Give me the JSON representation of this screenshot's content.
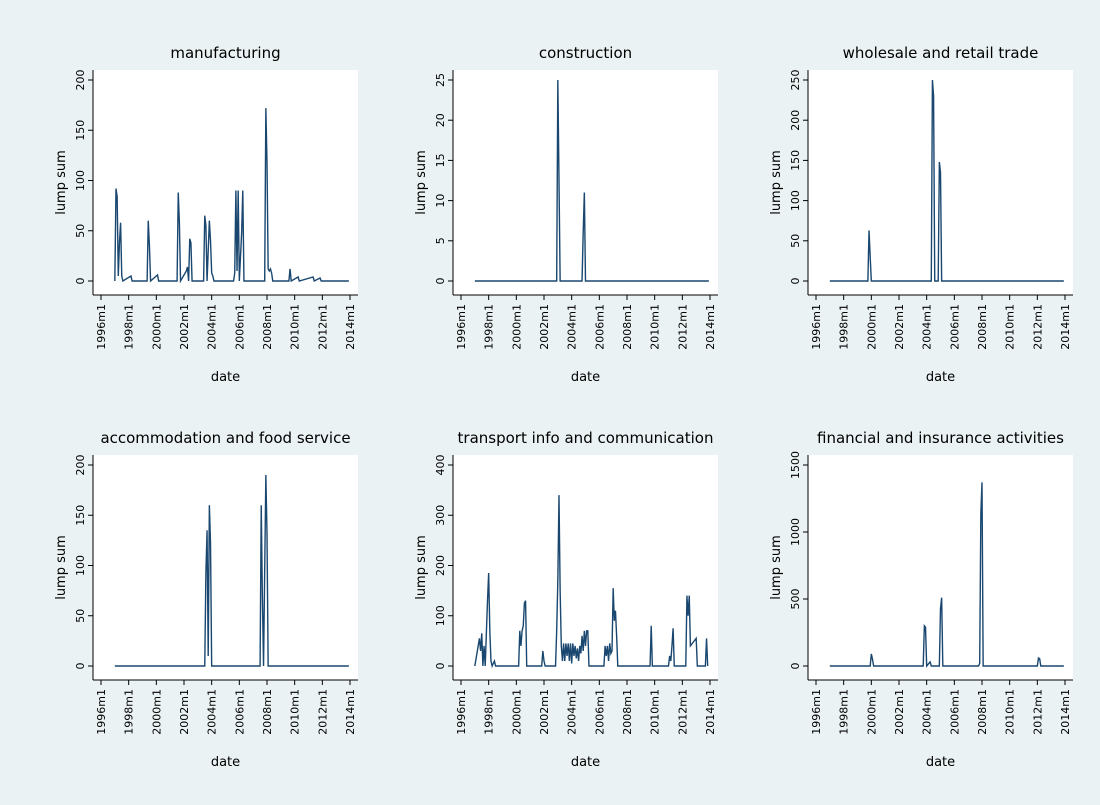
{
  "chart_data": [
    {
      "type": "line",
      "title": "manufacturing",
      "xlabel": "date",
      "ylabel": "lump sum",
      "color": "#1a476f",
      "x": [
        "1997m1",
        "1997m2",
        "1997m3",
        "1997m4",
        "1997m5",
        "1997m6",
        "1997m7",
        "1997m8",
        "1998m3",
        "1998m4",
        "1999m5",
        "1999m6",
        "1999m7",
        "1999m8",
        "2000m2",
        "2000m3",
        "2001m7",
        "2001m8",
        "2001m9",
        "2001m10",
        "2002m3",
        "2002m4",
        "2002m5",
        "2002m6",
        "2002m7",
        "2002m8",
        "2003m6",
        "2003m7",
        "2003m8",
        "2003m9",
        "2003m11",
        "2003m12",
        "2004m1",
        "2004m2",
        "2004m3",
        "2005m8",
        "2005m9",
        "2005m10",
        "2005m11",
        "2005m12",
        "2006m1",
        "2006m3",
        "2006m4",
        "2006m5",
        "2007m11",
        "2007m12",
        "2008m1",
        "2008m2",
        "2008m3",
        "2008m4",
        "2008m5",
        "2008m6",
        "2009m8",
        "2009m9",
        "2009m10",
        "2010m4",
        "2010m5",
        "2011m5",
        "2011m6",
        "2011m11",
        "2011m12",
        "2013m12"
      ],
      "values": [
        0,
        92,
        84,
        5,
        38,
        58,
        5,
        0,
        5,
        0,
        0,
        60,
        35,
        0,
        6,
        0,
        0,
        88,
        58,
        0,
        10,
        14,
        0,
        42,
        38,
        0,
        0,
        65,
        55,
        0,
        60,
        40,
        8,
        5,
        0,
        0,
        8,
        90,
        10,
        90,
        0,
        48,
        90,
        0,
        0,
        172,
        118,
        12,
        10,
        12,
        8,
        0,
        0,
        12,
        0,
        4,
        0,
        4,
        0,
        3,
        0,
        0
      ],
      "xlim": [
        "1996m1",
        "2014m1"
      ],
      "xticks": [
        "1996m1",
        "1998m1",
        "2000m1",
        "2002m1",
        "2004m1",
        "2006m1",
        "2008m1",
        "2010m1",
        "2012m1",
        "2014m1"
      ],
      "ylim": [
        0,
        200
      ],
      "yticks": [
        0,
        50,
        100,
        150,
        200
      ]
    },
    {
      "type": "line",
      "title": "construction",
      "xlabel": "date",
      "ylabel": "lump sum",
      "color": "#1a476f",
      "x": [
        "1997m1",
        "2002m12",
        "2003m1",
        "2003m2",
        "2003m3",
        "2004m10",
        "2004m11",
        "2004m12",
        "2005m1",
        "2013m12"
      ],
      "values": [
        0,
        0,
        25,
        12.5,
        0,
        0,
        6,
        11,
        0,
        0
      ],
      "xlim": [
        "1996m1",
        "2014m1"
      ],
      "xticks": [
        "1996m1",
        "1998m1",
        "2000m1",
        "2002m1",
        "2004m1",
        "2006m1",
        "2008m1",
        "2010m1",
        "2012m1",
        "2014m1"
      ],
      "ylim": [
        0,
        25
      ],
      "yticks": [
        0,
        5,
        10,
        15,
        20,
        25
      ]
    },
    {
      "type": "line",
      "title": "wholesale and retail trade",
      "xlabel": "date",
      "ylabel": "lump sum",
      "color": "#1a476f",
      "x": [
        "1997m1",
        "1999m10",
        "1999m11",
        "1999m12",
        "2000m1",
        "2004m5",
        "2004m6",
        "2004m7",
        "2004m8",
        "2004m11",
        "2004m12",
        "2005m1",
        "2005m2",
        "2013m12"
      ],
      "values": [
        0,
        0,
        63,
        30,
        0,
        0,
        250,
        230,
        0,
        0,
        148,
        135,
        0,
        0
      ],
      "xlim": [
        "1996m1",
        "2014m1"
      ],
      "xticks": [
        "1996m1",
        "1998m1",
        "2000m1",
        "2002m1",
        "2004m1",
        "2006m1",
        "2008m1",
        "2010m1",
        "2012m1",
        "2014m1"
      ],
      "ylim": [
        0,
        250
      ],
      "yticks": [
        0,
        50,
        100,
        150,
        200,
        250
      ]
    },
    {
      "type": "line",
      "title": "accommodation and food service",
      "xlabel": "date",
      "ylabel": "lump sum",
      "color": "#1a476f",
      "x": [
        "1997m1",
        "2003m7",
        "2003m8",
        "2003m9",
        "2003m10",
        "2003m11",
        "2003m12",
        "2004m1",
        "2007m7",
        "2007m8",
        "2007m9",
        "2007m10",
        "2007m12",
        "2008m1",
        "2008m2",
        "2013m12"
      ],
      "values": [
        0,
        0,
        93,
        135,
        10,
        160,
        122,
        0,
        0,
        160,
        68,
        0,
        190,
        132,
        0,
        0
      ],
      "xlim": [
        "1996m1",
        "2014m1"
      ],
      "xticks": [
        "1996m1",
        "1998m1",
        "2000m1",
        "2002m1",
        "2004m1",
        "2006m1",
        "2008m1",
        "2010m1",
        "2012m1",
        "2014m1"
      ],
      "ylim": [
        0,
        200
      ],
      "yticks": [
        0,
        50,
        100,
        150,
        200
      ]
    },
    {
      "type": "line",
      "title": "transport info and communication",
      "xlabel": "date",
      "ylabel": "lump sum",
      "color": "#1a476f",
      "x": [
        "1997m1",
        "1997m5",
        "1997m6",
        "1997m7",
        "1997m8",
        "1997m9",
        "1997m10",
        "1997m12",
        "1998m1",
        "1998m2",
        "1998m3",
        "1998m4",
        "1998m6",
        "1998m7",
        "2000m3",
        "2000m4",
        "2000m5",
        "2000m6",
        "2000m7",
        "2000m8",
        "2000m9",
        "2000m10",
        "2001m11",
        "2001m12",
        "2002m1",
        "2002m2",
        "2002m11",
        "2002m12",
        "2003m1",
        "2003m2",
        "2003m3",
        "2003m4",
        "2003m5",
        "2003m6",
        "2003m7",
        "2003m8",
        "2003m9",
        "2003m10",
        "2003m11",
        "2003m12",
        "2004m1",
        "2004m2",
        "2004m3",
        "2004m4",
        "2004m5",
        "2004m6",
        "2004m7",
        "2004m8",
        "2004m9",
        "2004m10",
        "2004m11",
        "2004m12",
        "2005m1",
        "2005m2",
        "2005m3",
        "2005m4",
        "2006m5",
        "2006m6",
        "2006m7",
        "2006m8",
        "2006m9",
        "2006m10",
        "2006m11",
        "2006m12",
        "2007m1",
        "2007m2",
        "2007m3",
        "2007m4",
        "2007m5",
        "2009m9",
        "2009m10",
        "2009m11",
        "2011m1",
        "2011m2",
        "2011m3",
        "2011m4",
        "2011m5",
        "2011m6",
        "2012m4",
        "2012m5",
        "2012m6",
        "2012m7",
        "2012m8",
        "2013m1",
        "2013m2",
        "2013m9",
        "2013m10",
        "2013m11"
      ],
      "values": [
        0,
        55,
        30,
        65,
        0,
        40,
        0,
        130,
        185,
        70,
        10,
        0,
        10,
        0,
        0,
        70,
        40,
        70,
        80,
        125,
        130,
        0,
        0,
        30,
        10,
        0,
        0,
        70,
        170,
        340,
        150,
        40,
        10,
        45,
        10,
        45,
        20,
        45,
        10,
        45,
        5,
        45,
        20,
        40,
        15,
        35,
        10,
        40,
        25,
        60,
        30,
        70,
        40,
        70,
        70,
        0,
        0,
        40,
        20,
        40,
        10,
        45,
        25,
        30,
        155,
        90,
        110,
        60,
        0,
        0,
        80,
        0,
        0,
        20,
        10,
        40,
        75,
        0,
        0,
        140,
        100,
        140,
        40,
        55,
        0,
        0,
        55,
        0
      ],
      "xlim": [
        "1996m1",
        "2014m1"
      ],
      "xticks": [
        "1996m1",
        "1998m1",
        "2000m1",
        "2002m1",
        "2004m1",
        "2006m1",
        "2008m1",
        "2010m1",
        "2012m1",
        "2014m1"
      ],
      "ylim": [
        0,
        400
      ],
      "yticks": [
        0,
        100,
        200,
        300,
        400
      ]
    },
    {
      "type": "line",
      "title": "financial and insurance activities",
      "xlabel": "date",
      "ylabel": "lump sum",
      "color": "#1a476f",
      "x": [
        "1997m1",
        "1999m12",
        "2000m1",
        "2000m2",
        "2000m3",
        "2003m10",
        "2003m11",
        "2003m12",
        "2004m1",
        "2004m4",
        "2004m5",
        "2004m12",
        "2005m1",
        "2005m2",
        "2005m3",
        "2007m10",
        "2007m11",
        "2007m12",
        "2008m1",
        "2008m2",
        "2012m1",
        "2012m2",
        "2012m3",
        "2012m4",
        "2013m12"
      ],
      "values": [
        0,
        0,
        90,
        50,
        0,
        0,
        300,
        290,
        0,
        30,
        0,
        0,
        430,
        510,
        0,
        0,
        20,
        1140,
        1370,
        0,
        0,
        60,
        55,
        0,
        0
      ],
      "xlim": [
        "1996m1",
        "2014m1"
      ],
      "xticks": [
        "1996m1",
        "1998m1",
        "2000m1",
        "2002m1",
        "2004m1",
        "2006m1",
        "2008m1",
        "2010m1",
        "2012m1",
        "2014m1"
      ],
      "ylim": [
        0,
        1500
      ],
      "yticks": [
        0,
        500,
        1000,
        1500
      ]
    }
  ]
}
